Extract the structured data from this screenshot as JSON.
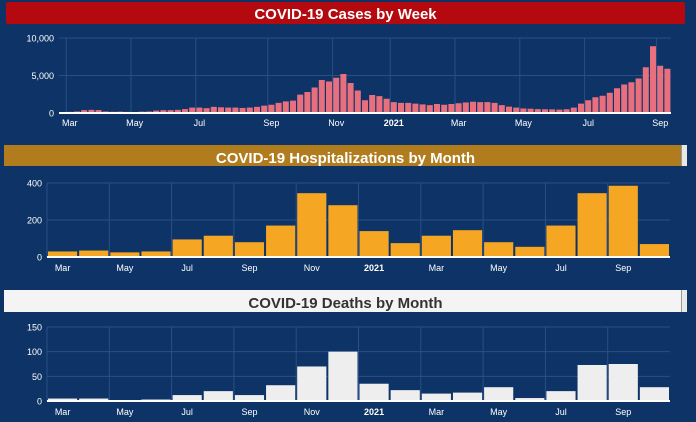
{
  "colors": {
    "background": "#0e3366",
    "cases_bar": "#e8707e",
    "hosp_bar": "#f5a623",
    "deaths_bar": "#eeeeee"
  },
  "chart_data": [
    {
      "id": "cases",
      "type": "bar",
      "title": "COVID-19 Cases by Week",
      "xlabel": "",
      "ylabel": "",
      "ylim": [
        0,
        10000
      ],
      "yticks": [
        "0",
        "5,000",
        "10,000"
      ],
      "ytick_values": [
        0,
        5000,
        10000
      ],
      "x_tick_labels": [
        "Mar",
        "May",
        "Jul",
        "Sep",
        "Nov",
        "2021",
        "Mar",
        "May",
        "Jul",
        "Sep"
      ],
      "x_tick_positions": [
        1,
        10,
        19,
        29,
        38,
        46,
        55,
        64,
        73,
        83
      ],
      "values": [
        120,
        150,
        200,
        380,
        420,
        390,
        200,
        160,
        180,
        150,
        120,
        180,
        200,
        320,
        380,
        380,
        420,
        520,
        720,
        720,
        640,
        820,
        760,
        720,
        720,
        670,
        720,
        820,
        980,
        1100,
        1350,
        1550,
        1650,
        2450,
        2800,
        3400,
        4400,
        4200,
        4700,
        5200,
        4000,
        3000,
        1700,
        2400,
        2250,
        1900,
        1450,
        1350,
        1350,
        1250,
        1150,
        1050,
        1200,
        1100,
        1200,
        1300,
        1400,
        1500,
        1450,
        1450,
        1350,
        1050,
        850,
        720,
        600,
        570,
        520,
        500,
        480,
        450,
        500,
        720,
        1250,
        1700,
        2100,
        2300,
        2700,
        3300,
        3800,
        4100,
        4600,
        6100,
        8900,
        6300,
        5900
      ]
    },
    {
      "id": "hospitalizations",
      "type": "bar",
      "title": "COVID-19 Hospitalizations by Month",
      "xlabel": "",
      "ylabel": "",
      "ylim": [
        0,
        400
      ],
      "yticks": [
        "0",
        "200",
        "400"
      ],
      "ytick_values": [
        0,
        200,
        400
      ],
      "x_tick_labels": [
        "Mar",
        "May",
        "Jul",
        "Sep",
        "Nov",
        "2021",
        "Mar",
        "May",
        "Jul",
        "Sep"
      ],
      "categories": [
        "Mar 2020",
        "Apr 2020",
        "May 2020",
        "Jun 2020",
        "Jul 2020",
        "Aug 2020",
        "Sep 2020",
        "Oct 2020",
        "Nov 2020",
        "Dec 2020",
        "Jan 2021",
        "Feb 2021",
        "Mar 2021",
        "Apr 2021",
        "May 2021",
        "Jun 2021",
        "Jul 2021",
        "Aug 2021",
        "Sep 2021",
        "Oct 2021"
      ],
      "values": [
        30,
        35,
        25,
        30,
        95,
        115,
        80,
        170,
        345,
        280,
        140,
        75,
        115,
        145,
        80,
        55,
        170,
        345,
        385,
        70
      ]
    },
    {
      "id": "deaths",
      "type": "bar",
      "title": "COVID-19 Deaths by Month",
      "xlabel": "",
      "ylabel": "",
      "ylim": [
        0,
        150
      ],
      "yticks": [
        "0",
        "50",
        "100",
        "150"
      ],
      "ytick_values": [
        0,
        50,
        100,
        150
      ],
      "x_tick_labels": [
        "Mar",
        "May",
        "Jul",
        "Sep",
        "Nov",
        "2021",
        "Mar",
        "May",
        "Jul",
        "Sep"
      ],
      "categories": [
        "Mar 2020",
        "Apr 2020",
        "May 2020",
        "Jun 2020",
        "Jul 2020",
        "Aug 2020",
        "Sep 2020",
        "Oct 2020",
        "Nov 2020",
        "Dec 2020",
        "Jan 2021",
        "Feb 2021",
        "Mar 2021",
        "Apr 2021",
        "May 2021",
        "Jun 2021",
        "Jul 2021",
        "Aug 2021",
        "Sep 2021",
        "Oct 2021"
      ],
      "values": [
        5,
        5,
        2,
        3,
        12,
        20,
        12,
        32,
        70,
        100,
        35,
        22,
        15,
        17,
        28,
        6,
        20,
        73,
        75,
        28
      ]
    }
  ]
}
